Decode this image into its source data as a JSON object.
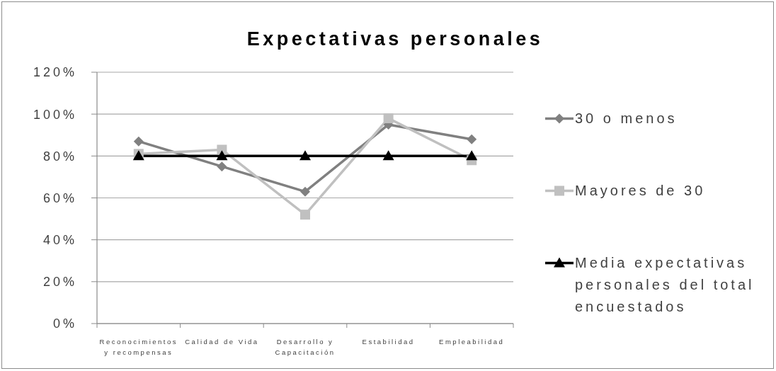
{
  "chart_data": {
    "type": "line",
    "title": "Expectativas personales",
    "categories": [
      "Reconocimientos y recompensas",
      "Calidad de Vida",
      "Desarrollo y Capacitación",
      "Estabilidad",
      "Empleabilidad"
    ],
    "series": [
      {
        "name": "30 o menos",
        "color": "#808080",
        "marker": "diamond",
        "values": [
          87,
          75,
          63,
          95,
          88
        ]
      },
      {
        "name": "Mayores de 30",
        "color": "#c0c0c0",
        "marker": "square",
        "values": [
          81,
          83,
          52,
          98,
          78
        ]
      },
      {
        "name": "Media expectativas personales del total encuestados",
        "color": "#000000",
        "marker": "triangle",
        "values": [
          80,
          80,
          80,
          80,
          80
        ]
      }
    ],
    "ylim": [
      0,
      120
    ],
    "yticks": [
      {
        "value": 0,
        "label": "0%"
      },
      {
        "value": 20,
        "label": "20%"
      },
      {
        "value": 40,
        "label": "40%"
      },
      {
        "value": 60,
        "label": "60%"
      },
      {
        "value": 80,
        "label": "80%"
      },
      {
        "value": 100,
        "label": "100%"
      },
      {
        "value": 120,
        "label": "120%"
      }
    ],
    "grid": "y",
    "legend": "right"
  }
}
